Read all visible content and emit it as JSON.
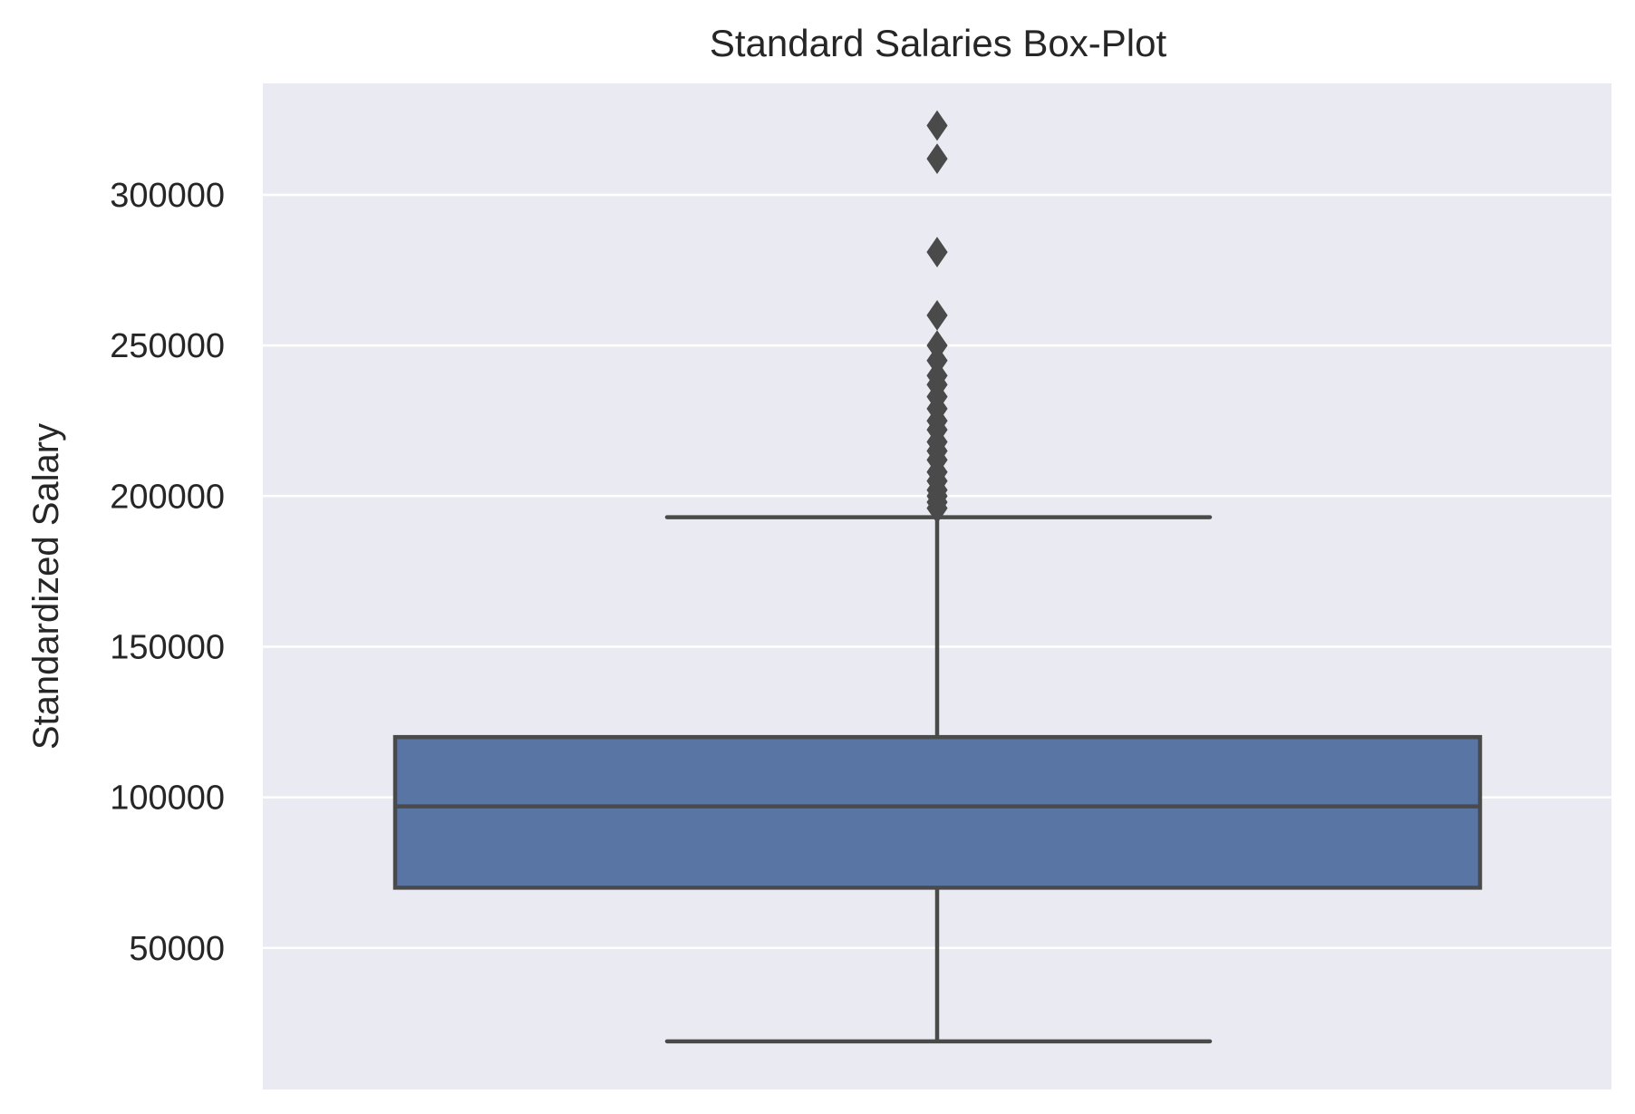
{
  "colors": {
    "background": "#ffffff",
    "plot_area": "#eaeaf2",
    "gridline": "#ffffff",
    "box_fill": "#5975a4",
    "line": "#4a4a4a",
    "text": "#262626"
  },
  "chart_data": {
    "type": "box",
    "title": "Standard Salaries Box-Plot",
    "xlabel": "",
    "ylabel": "Standardized Salary",
    "ylim": [
      3000,
      337000
    ],
    "yticks": [
      50000,
      100000,
      150000,
      200000,
      250000,
      300000
    ],
    "ytick_labels": [
      "50000",
      "100000",
      "150000",
      "200000",
      "250000",
      "300000"
    ],
    "grid": true,
    "box": {
      "whisker_low": 19000,
      "q1": 70000,
      "median": 97000,
      "q3": 120000,
      "whisker_high": 193000
    },
    "outliers": [
      196000,
      198000,
      200000,
      202000,
      205000,
      208000,
      212000,
      215000,
      218000,
      222000,
      225000,
      229000,
      233000,
      237000,
      240000,
      245000,
      250000,
      260000,
      281000,
      312000,
      323000
    ]
  }
}
